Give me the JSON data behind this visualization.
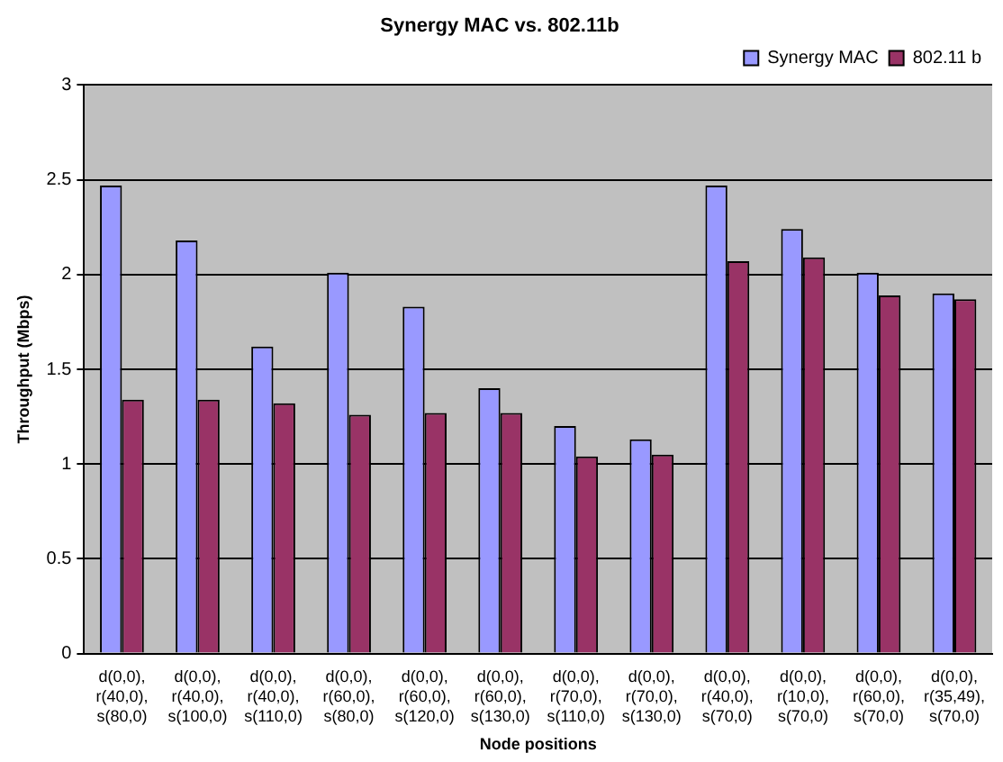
{
  "chart_data": {
    "type": "bar",
    "title": "Synergy MAC vs. 802.11b",
    "xlabel": "Node positions",
    "ylabel": "Throughput (Mbps)",
    "categories": [
      "d(0,0), r(40,0), s(80,0)",
      "d(0,0), r(40,0), s(100,0)",
      "d(0,0), r(40,0), s(110,0)",
      "d(0,0), r(60,0), s(80,0)",
      "d(0,0), r(60,0), s(120,0)",
      "d(0,0), r(60,0), s(130,0)",
      "d(0,0), r(70,0), s(110,0)",
      "d(0,0), r(70,0), s(130,0)",
      "d(0,0), r(40,0), s(70,0)",
      "d(0,0), r(10,0), s(70,0)",
      "d(0,0), r(60,0), s(70,0)",
      "d(0,0), r(35,49), s(70,0)"
    ],
    "series": [
      {
        "name": "Synergy MAC",
        "color": "#9999ff",
        "values": [
          2.47,
          2.18,
          1.62,
          2.01,
          1.83,
          1.4,
          1.2,
          1.13,
          2.47,
          2.24,
          2.01,
          1.9
        ]
      },
      {
        "name": "802.11 b",
        "color": "#993366",
        "values": [
          1.34,
          1.34,
          1.32,
          1.26,
          1.27,
          1.27,
          1.04,
          1.05,
          2.07,
          2.09,
          1.89,
          1.87
        ]
      }
    ],
    "ylim": [
      0,
      3
    ],
    "yticks": [
      0,
      0.5,
      1,
      1.5,
      2,
      2.5,
      3
    ],
    "grid": "y",
    "legend": "top right"
  }
}
